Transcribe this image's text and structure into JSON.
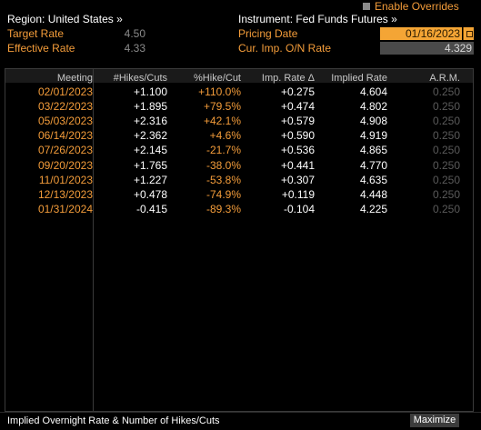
{
  "header": {
    "enable_overrides_label": "Enable Overrides",
    "region_label": "Region: United States »",
    "instrument_label": "Instrument: Fed Funds Futures »",
    "target_rate_label": "Target Rate",
    "target_rate_value": "4.50",
    "effective_rate_label": "Effective Rate",
    "effective_rate_value": "4.33",
    "pricing_date_label": "Pricing Date",
    "pricing_date_value": "01/16/2023",
    "cur_imp_label": "Cur. Imp. O/N Rate",
    "cur_imp_value": "4.329"
  },
  "table": {
    "columns": [
      "Meeting",
      "#Hikes/Cuts",
      "%Hike/Cut",
      "Imp. Rate Δ",
      "Implied Rate",
      "A.R.M."
    ],
    "rows": [
      {
        "meeting": "02/01/2023",
        "hikes": "+1.100",
        "pct": "+110.0%",
        "imp": "+0.275",
        "rate": "4.604",
        "arm": "0.250"
      },
      {
        "meeting": "03/22/2023",
        "hikes": "+1.895",
        "pct": "+79.5%",
        "imp": "+0.474",
        "rate": "4.802",
        "arm": "0.250"
      },
      {
        "meeting": "05/03/2023",
        "hikes": "+2.316",
        "pct": "+42.1%",
        "imp": "+0.579",
        "rate": "4.908",
        "arm": "0.250"
      },
      {
        "meeting": "06/14/2023",
        "hikes": "+2.362",
        "pct": "+4.6%",
        "imp": "+0.590",
        "rate": "4.919",
        "arm": "0.250"
      },
      {
        "meeting": "07/26/2023",
        "hikes": "+2.145",
        "pct": "-21.7%",
        "imp": "+0.536",
        "rate": "4.865",
        "arm": "0.250"
      },
      {
        "meeting": "09/20/2023",
        "hikes": "+1.765",
        "pct": "-38.0%",
        "imp": "+0.441",
        "rate": "4.770",
        "arm": "0.250"
      },
      {
        "meeting": "11/01/2023",
        "hikes": "+1.227",
        "pct": "-53.8%",
        "imp": "+0.307",
        "rate": "4.635",
        "arm": "0.250"
      },
      {
        "meeting": "12/13/2023",
        "hikes": "+0.478",
        "pct": "-74.9%",
        "imp": "+0.119",
        "rate": "4.448",
        "arm": "0.250"
      },
      {
        "meeting": "01/31/2024",
        "hikes": "-0.415",
        "pct": "-89.3%",
        "imp": "-0.104",
        "rate": "4.225",
        "arm": "0.250"
      }
    ]
  },
  "footer": {
    "caption": "Implied Overnight Rate & Number of Hikes/Cuts",
    "maximize_label": "Maximize"
  },
  "colors": {
    "accent_orange": "#f39c3a",
    "input_orange": "#f4a535",
    "background": "#000000"
  }
}
